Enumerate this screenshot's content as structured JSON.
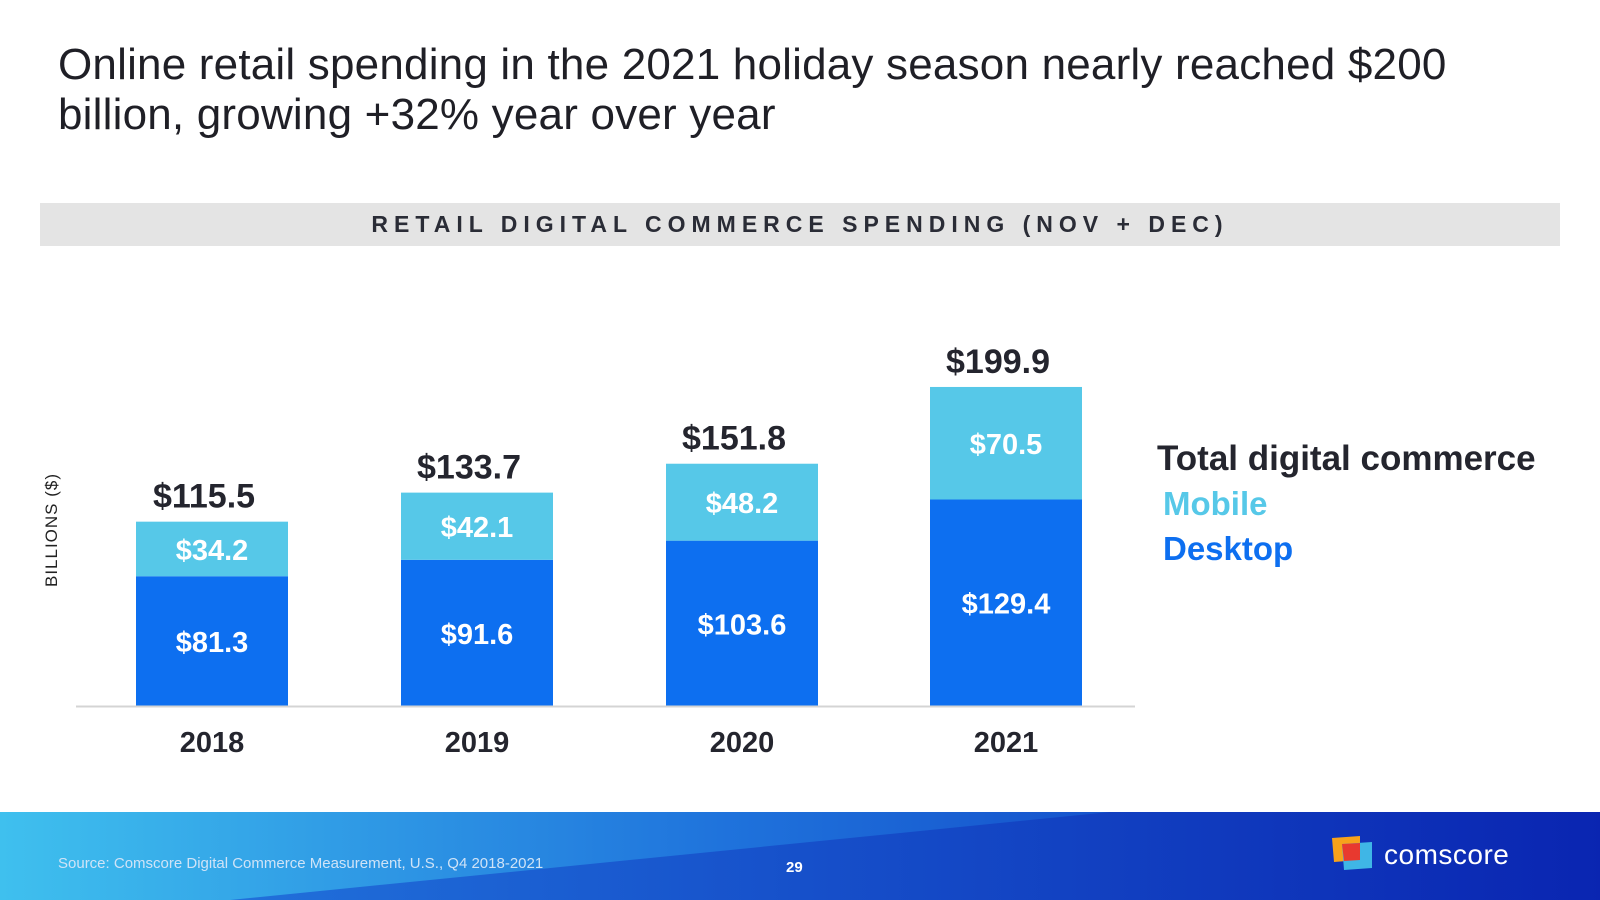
{
  "slide": {
    "headline": "Online retail spending in the 2021 holiday season nearly reached $200 billion, growing +32% year over year",
    "banner": "RETAIL DIGITAL COMMERCE SPENDING (NOV + DEC)",
    "source": "Source: Comscore Digital Commerce Measurement, U.S., Q4 2018-2021",
    "page_number": "29",
    "brand": "comscore"
  },
  "legend": {
    "total": "Total digital commerce",
    "mobile": "Mobile",
    "desktop": "Desktop"
  },
  "colors": {
    "desktop": "#0d6ff0",
    "mobile": "#56c8e8",
    "total_label": "#24252e",
    "footer_dark": "#0a2bb8",
    "footer_light": "#38b8ec"
  },
  "chart_data": {
    "type": "bar",
    "stacked": true,
    "title": "RETAIL DIGITAL COMMERCE SPENDING (NOV + DEC)",
    "xlabel": "",
    "ylabel": "BILLIONS ($)",
    "ylim": [
      0,
      200
    ],
    "categories": [
      "2018",
      "2019",
      "2020",
      "2021"
    ],
    "series": [
      {
        "name": "Desktop",
        "values": [
          81.3,
          91.6,
          103.6,
          129.4
        ],
        "labels": [
          "$81.3",
          "$91.6",
          "$103.6",
          "$129.4"
        ]
      },
      {
        "name": "Mobile",
        "values": [
          34.2,
          42.1,
          48.2,
          70.5
        ],
        "labels": [
          "$34.2",
          "$42.1",
          "$48.2",
          "$70.5"
        ]
      }
    ],
    "totals": {
      "name": "Total digital commerce",
      "values": [
        115.5,
        133.7,
        151.8,
        199.9
      ],
      "labels": [
        "$115.5",
        "$133.7",
        "$151.8",
        "$199.9"
      ]
    },
    "legend": "right",
    "grid": false
  }
}
